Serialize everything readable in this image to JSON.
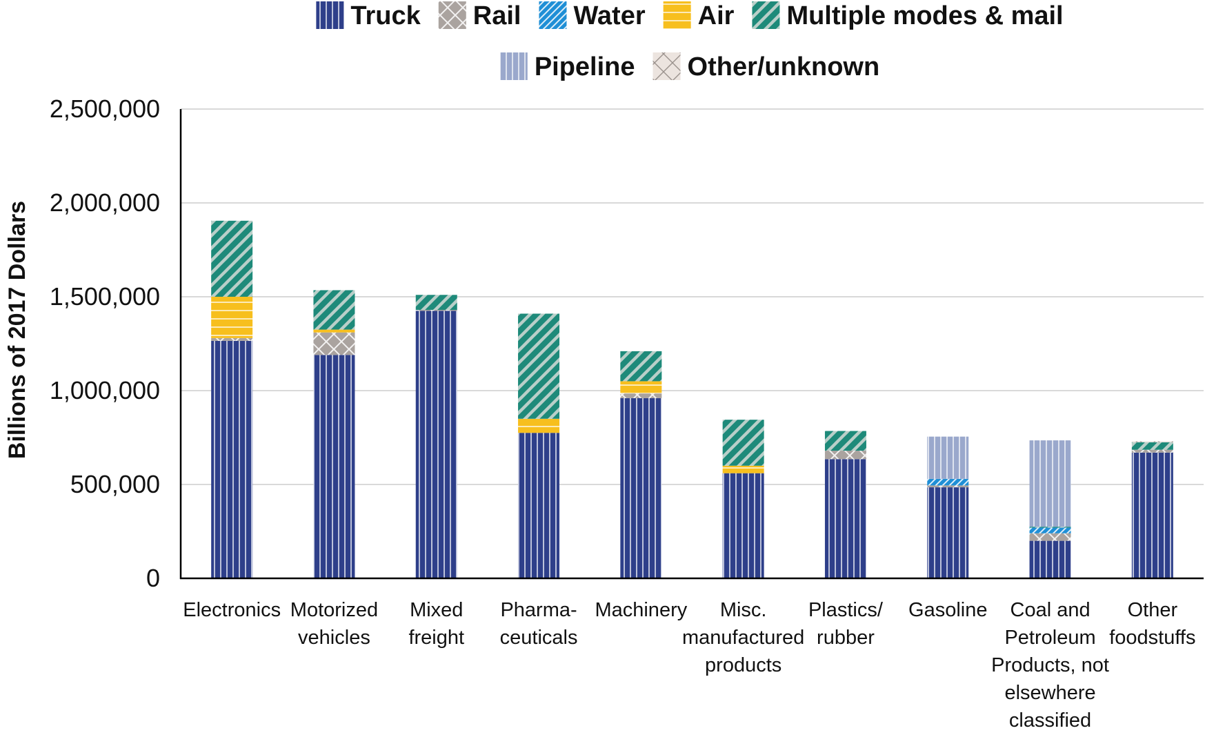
{
  "chart_data": {
    "type": "bar",
    "stacked": true,
    "title": "",
    "xlabel": "",
    "ylabel": "Billions of 2017 Dollars",
    "ylim": [
      0,
      2500000
    ],
    "yticks": [
      "0",
      "500,000",
      "1,000,000",
      "1,500,000",
      "2,000,000",
      "2,500,000"
    ],
    "grid": true,
    "legend_position": "top",
    "categories": [
      [
        "Electronics"
      ],
      [
        "Motorized",
        "vehicles"
      ],
      [
        "Mixed",
        "freight"
      ],
      [
        "Pharma-",
        "ceuticals"
      ],
      [
        "Machinery"
      ],
      [
        "Misc.",
        "manufactured",
        "products"
      ],
      [
        "Plastics/",
        "rubber"
      ],
      [
        "Gasoline"
      ],
      [
        "Coal and",
        "Petroleum",
        "Products, not",
        "elsewhere",
        "classified"
      ],
      [
        "Other",
        "foodstuffs"
      ]
    ],
    "series": [
      {
        "name": "Truck",
        "color": "#2e3f8a",
        "pattern": "vertical-lines",
        "values": [
          1265000,
          1190000,
          1425000,
          775000,
          960000,
          560000,
          635000,
          485000,
          200000,
          670000
        ]
      },
      {
        "name": "Rail",
        "color": "#aaa39f",
        "pattern": "cross-hatch",
        "values": [
          15000,
          120000,
          5000,
          0,
          25000,
          0,
          45000,
          10000,
          40000,
          15000
        ]
      },
      {
        "name": "Water",
        "color": "#1f8fd6",
        "pattern": "diagonal-lines",
        "values": [
          0,
          0,
          0,
          0,
          0,
          0,
          0,
          35000,
          30000,
          0
        ]
      },
      {
        "name": "Air",
        "color": "#f7bf1e",
        "pattern": "horizontal-lines",
        "values": [
          220000,
          15000,
          0,
          75000,
          65000,
          40000,
          0,
          0,
          0,
          0
        ]
      },
      {
        "name": "Multiple modes & mail",
        "color": "#1e8a7a",
        "pattern": "diagonal-stripes",
        "values": [
          405000,
          210000,
          80000,
          560000,
          160000,
          245000,
          105000,
          0,
          5000,
          40000
        ]
      },
      {
        "name": "Pipeline",
        "color": "#9aa8cc",
        "pattern": "vertical-lines",
        "values": [
          0,
          0,
          0,
          0,
          0,
          0,
          0,
          225000,
          460000,
          0
        ]
      },
      {
        "name": "Other/unknown",
        "color": "#ece4df",
        "pattern": "large-cross-hatch",
        "values": [
          0,
          0,
          0,
          0,
          0,
          0,
          0,
          0,
          0,
          5000
        ]
      }
    ]
  }
}
